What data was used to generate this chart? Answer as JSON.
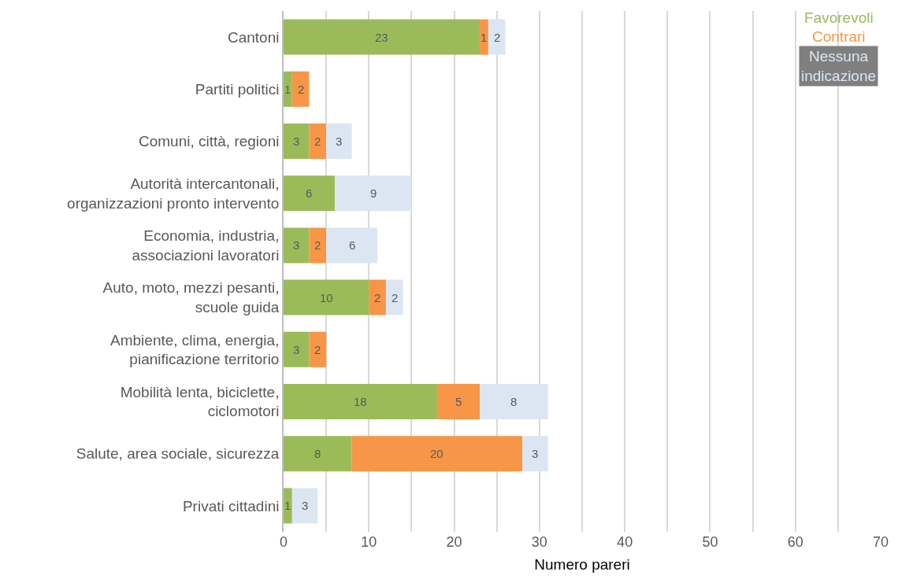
{
  "chart_data": {
    "type": "bar",
    "orientation": "horizontal",
    "stacked": true,
    "xlabel": "Numero pareri",
    "categories": [
      "Cantoni",
      "Partiti politici",
      "Comuni, città, regioni",
      "Autorità intercantonali,\norganizzazioni pronto intervento",
      "Economia, industria,\nassociazioni lavoratori",
      "Auto, moto, mezzi pesanti,\nscuole guida",
      "Ambiente, clima, energia,\npianificazione territorio",
      "Mobilità lenta, biciclette,\nciclomotori",
      "Salute, area sociale, sicurezza",
      "Privati cittadini"
    ],
    "series": [
      {
        "name": "Favorevoli",
        "color": "#9bbb59",
        "values": [
          23,
          1,
          3,
          6,
          3,
          10,
          3,
          18,
          8,
          1
        ]
      },
      {
        "name": "Contrari",
        "color": "#f79646",
        "values": [
          1,
          2,
          2,
          null,
          2,
          2,
          2,
          5,
          20,
          null
        ]
      },
      {
        "name": "Nessuna indicazione",
        "color": "#dce6f2",
        "values": [
          2,
          null,
          3,
          9,
          6,
          2,
          null,
          8,
          3,
          3
        ]
      }
    ],
    "xlim": [
      0,
      70
    ],
    "xticks": [
      0,
      {
        "value": 5,
        "label": null
      },
      10,
      {
        "value": 15,
        "label": null
      },
      20,
      {
        "value": 25,
        "label": null
      },
      30,
      {
        "value": 35,
        "label": null
      },
      40,
      {
        "value": 45,
        "label": null
      },
      50,
      {
        "value": 55,
        "label": null
      },
      60,
      {
        "value": 65,
        "label": null
      },
      70
    ],
    "grid": "x",
    "legend": "top right",
    "data_labels": true
  }
}
